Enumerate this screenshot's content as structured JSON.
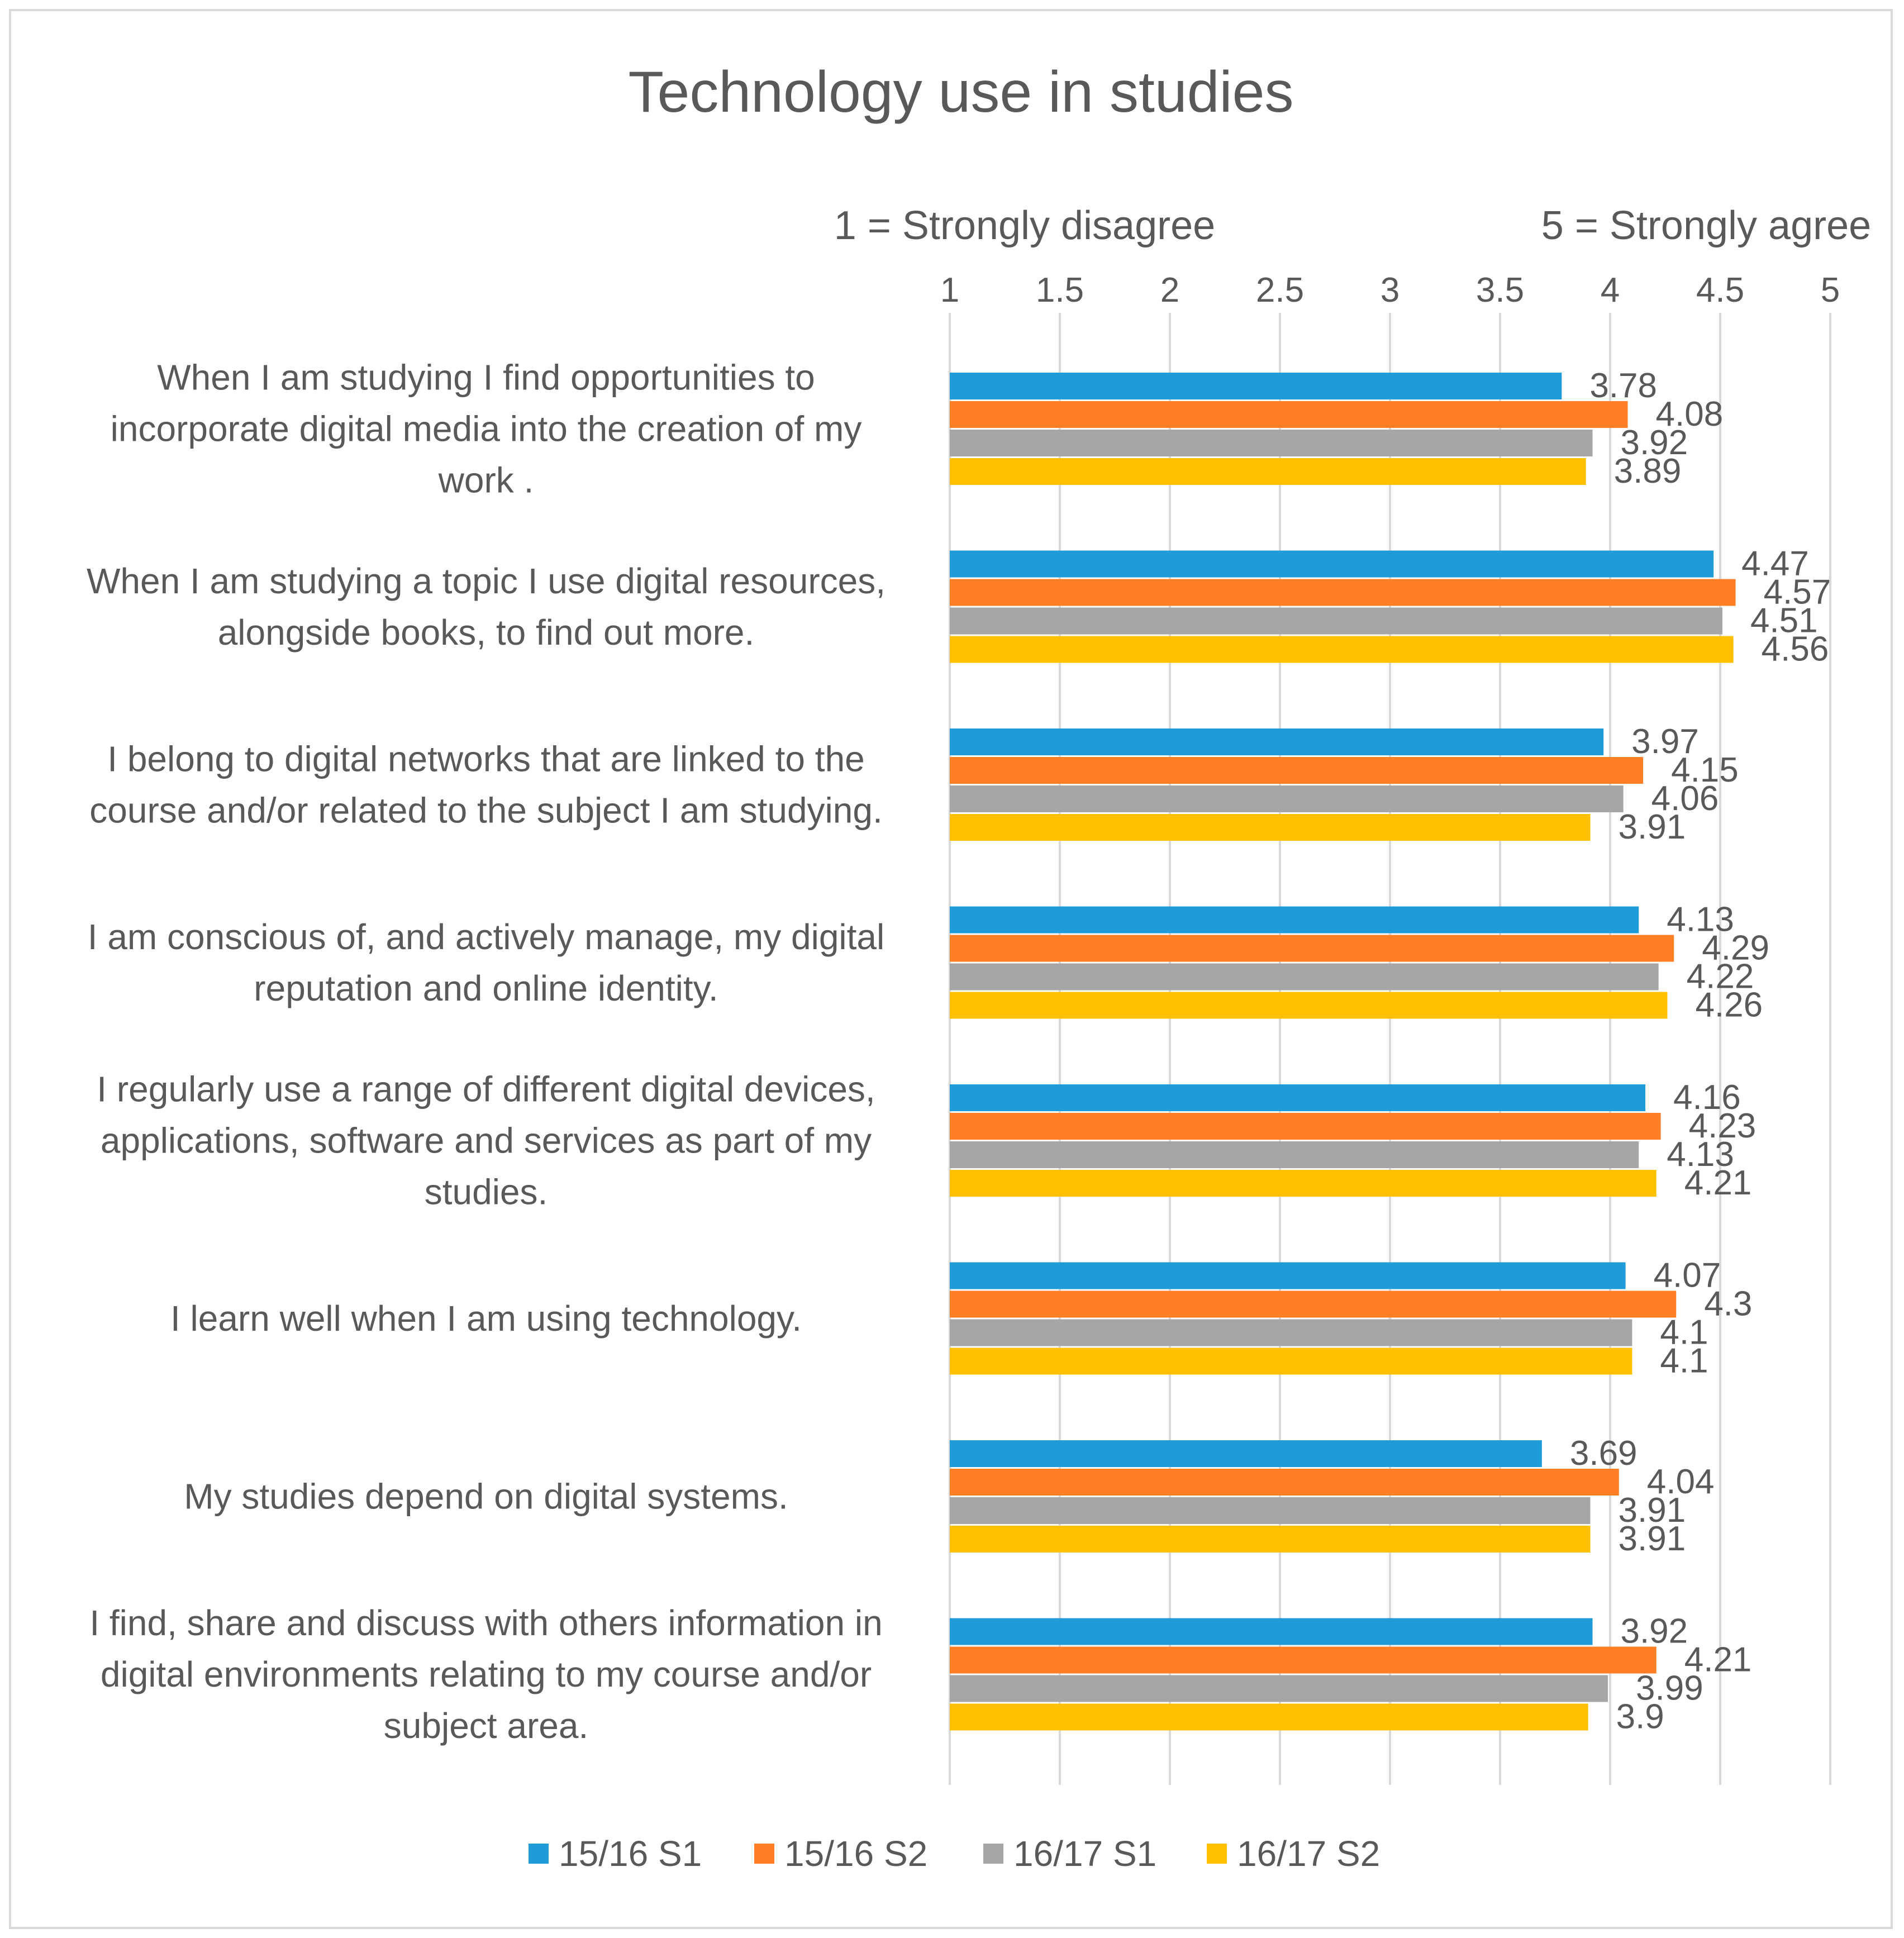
{
  "chart_data": {
    "type": "bar",
    "orientation": "horizontal",
    "title": "Technology use in studies",
    "scale_labels": {
      "left": "1 = Strongly disagree",
      "right": "5 = Strongly agree"
    },
    "xlim": [
      1,
      5
    ],
    "x_ticks": [
      "1",
      "1.5",
      "2",
      "2.5",
      "3",
      "3.5",
      "4",
      "4.5",
      "5"
    ],
    "grid": true,
    "legend_position": "bottom",
    "categories": [
      "When I am studying I find opportunities to incorporate digital media into the creation of my work .",
      "When I am studying a topic I use digital resources, alongside books, to find out more.",
      "I belong to digital networks that are linked to the course and/or related to the subject I am studying.",
      "I am conscious of, and actively manage, my digital reputation and online identity.",
      "I regularly use a range of different digital devices, applications, software and services as part of my studies.",
      "I learn well when I am using technology.",
      "My studies depend on digital systems.",
      "I find, share and discuss with others information in digital environments relating to my course and/or subject area."
    ],
    "category_lines": [
      [
        "When I am studying I find opportunities to",
        "incorporate digital media into the creation of my",
        "work ."
      ],
      [
        "When I am studying a topic I use digital resources,",
        "alongside books, to find out more."
      ],
      [
        "I belong to digital networks that are linked to the",
        "course and/or related to the subject I am studying."
      ],
      [
        "I am conscious of, and actively manage, my digital",
        "reputation and online identity."
      ],
      [
        "I regularly use a range of different digital devices,",
        "applications, software and services as part of my",
        "studies."
      ],
      [
        "I learn well when I am using technology."
      ],
      [
        "My studies depend on digital systems."
      ],
      [
        "I find, share and discuss with others information in",
        "digital environments relating to my course and/or",
        "subject area."
      ]
    ],
    "series": [
      {
        "name": "15/16 S1",
        "color": "#1f9bd7",
        "values": [
          3.78,
          4.47,
          3.97,
          4.13,
          4.16,
          4.07,
          3.69,
          3.92
        ],
        "labels": [
          "3.78",
          "4.47",
          "3.97",
          "4.13",
          "4.16",
          "4.07",
          "3.69",
          "3.92"
        ]
      },
      {
        "name": "15/16 S2",
        "color": "#ff7f27",
        "values": [
          4.08,
          4.57,
          4.15,
          4.29,
          4.23,
          4.3,
          4.04,
          4.21
        ],
        "labels": [
          "4.08",
          "4.57",
          "4.15",
          "4.29",
          "4.23",
          "4.3",
          "4.04",
          "4.21"
        ]
      },
      {
        "name": "16/17 S1",
        "color": "#a6a6a6",
        "values": [
          3.92,
          4.51,
          4.06,
          4.22,
          4.13,
          4.1,
          3.91,
          3.99
        ],
        "labels": [
          "3.92",
          "4.51",
          "4.06",
          "4.22",
          "4.13",
          "4.1",
          "3.91",
          "3.99"
        ]
      },
      {
        "name": "16/17 S2",
        "color": "#ffc000",
        "values": [
          3.89,
          4.56,
          3.91,
          4.26,
          4.21,
          4.1,
          3.91,
          3.9
        ],
        "labels": [
          "3.89",
          "4.56",
          "3.91",
          "4.26",
          "4.21",
          "4.1",
          "3.91",
          "3.9"
        ]
      }
    ]
  }
}
